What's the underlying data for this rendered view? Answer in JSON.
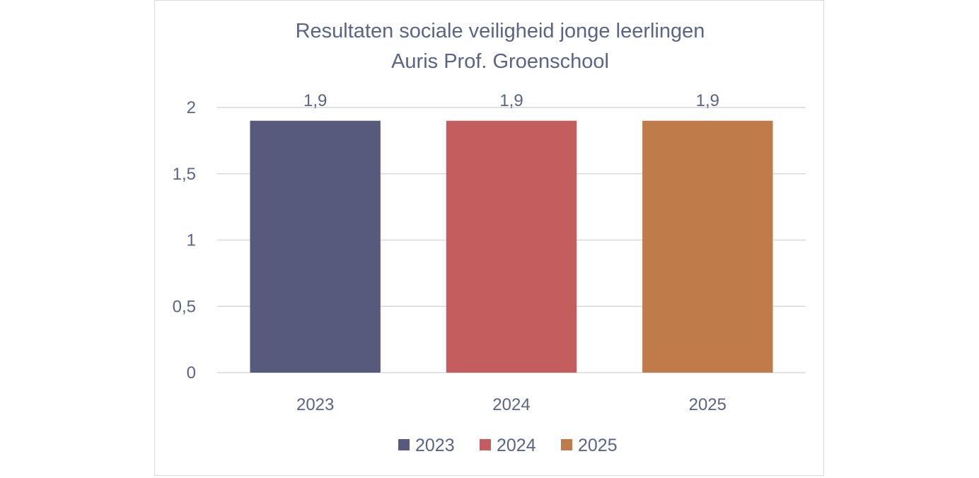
{
  "chart_data": {
    "type": "bar",
    "title_lines": [
      "Resultaten sociale veiligheid jonge leerlingen",
      "Auris Prof. Groenschool"
    ],
    "categories": [
      "2023",
      "2024",
      "2025"
    ],
    "values": [
      1.9,
      1.9,
      1.9
    ],
    "value_labels": [
      "1,9",
      "1,9",
      "1,9"
    ],
    "colors": [
      "#585a7d",
      "#c45e5e",
      "#c07b4b"
    ],
    "ylim": [
      0,
      2
    ],
    "yticks": [
      0,
      0.5,
      1,
      1.5,
      2
    ],
    "ytick_labels": [
      "0",
      "0,5",
      "1",
      "1,5",
      "2"
    ],
    "xlabel": "",
    "ylabel": "",
    "grid": true,
    "legend": {
      "position": "bottom",
      "entries": [
        "2023",
        "2024",
        "2025"
      ]
    }
  }
}
